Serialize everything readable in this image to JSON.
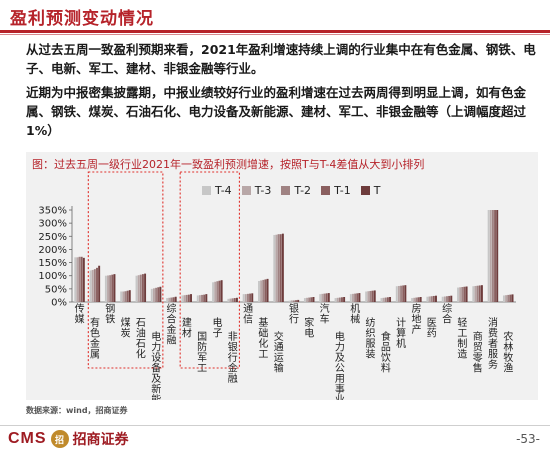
{
  "header": {
    "title": "盈利预测变动情况"
  },
  "paragraphs": {
    "p1": "从过去五周一致盈利预期来看，2021年盈利增速持续上调的行业集中在有色金属、钢铁、电子、电新、军工、建材、非银金融等行业。",
    "p2": "近期为中报密集披露期，中报业绩较好行业的盈利增速在过去两周得到明显上调，如有色金属、钢铁、煤炭、石油石化、电力设备及新能源、建材、军工、非银金融等（上调幅度超过1%）"
  },
  "source": "数据来源：wind，招商证券",
  "footer": {
    "logo_cms": "CMS",
    "logo_seal": "招",
    "logo_cn": "招商证券",
    "page": "-53-"
  },
  "colors": {
    "brand": "#b6232a",
    "highlight": "#e0302b"
  },
  "chart_data": {
    "type": "bar",
    "title": "图：过去五周一级行业2021年一致盈利预测增速，按照T与T-4差值从大到小排列",
    "ylim": [
      0,
      350
    ],
    "yticks": [
      0,
      50,
      100,
      150,
      200,
      250,
      300,
      350
    ],
    "ytick_labels": [
      "0%",
      "50%",
      "100%",
      "150%",
      "200%",
      "250%",
      "300%",
      "350%"
    ],
    "grid": false,
    "legend": "top",
    "categories": [
      "传媒",
      "有色金属",
      "钢铁",
      "煤炭",
      "石油石化",
      "电力设备及新能源",
      "综合金融",
      "建材",
      "国防军工",
      "电子",
      "非银行金融",
      "通信",
      "基础化工",
      "交通运输",
      "银行",
      "家电",
      "汽车",
      "电力及公用事业",
      "机械",
      "纺织服装",
      "食品饮料",
      "计算机",
      "房地产",
      "医药",
      "综合",
      "轻工制造",
      "商贸零售",
      "消费者服务",
      "农林牧渔"
    ],
    "label_rows": [
      0,
      1,
      0,
      1,
      1,
      2,
      0,
      1,
      2,
      1,
      2,
      0,
      1,
      2,
      0,
      1,
      0,
      2,
      0,
      1,
      2,
      1,
      0,
      1,
      0,
      1,
      2,
      1,
      2
    ],
    "series": [
      {
        "name": "T-4",
        "color": "#c7c7c7",
        "values": [
          170,
          120,
          100,
          40,
          100,
          50,
          15,
          25,
          25,
          75,
          12,
          30,
          80,
          255,
          5,
          15,
          30,
          15,
          30,
          40,
          15,
          60,
          15,
          20,
          20,
          55,
          60,
          350,
          25
        ]
      },
      {
        "name": "T-3",
        "color": "#b8a7a7",
        "values": [
          170,
          122,
          101,
          40,
          102,
          52,
          16,
          26,
          26,
          77,
          13,
          30,
          82,
          256,
          6,
          16,
          31,
          16,
          31,
          41,
          16,
          61,
          16,
          21,
          21,
          56,
          61,
          350,
          26
        ]
      },
      {
        "name": "T-2",
        "color": "#a08383",
        "values": [
          172,
          125,
          102,
          41,
          104,
          54,
          17,
          27,
          27,
          79,
          14,
          31,
          84,
          258,
          6,
          17,
          32,
          17,
          32,
          42,
          17,
          62,
          17,
          22,
          22,
          57,
          62,
          350,
          27
        ]
      },
      {
        "name": "T-1",
        "color": "#8a5f5f",
        "values": [
          172,
          130,
          104,
          43,
          106,
          56,
          18,
          28,
          28,
          81,
          15,
          32,
          86,
          258,
          7,
          18,
          33,
          18,
          33,
          43,
          18,
          63,
          18,
          23,
          23,
          58,
          63,
          350,
          28
        ]
      },
      {
        "name": "T",
        "color": "#6e3c3c",
        "values": [
          168,
          138,
          106,
          45,
          108,
          58,
          20,
          30,
          30,
          83,
          16,
          33,
          88,
          260,
          8,
          19,
          34,
          19,
          34,
          44,
          19,
          64,
          19,
          24,
          24,
          59,
          64,
          350,
          29
        ]
      }
    ],
    "highlight_groups": [
      [
        1,
        5
      ],
      [
        7,
        10
      ]
    ]
  }
}
